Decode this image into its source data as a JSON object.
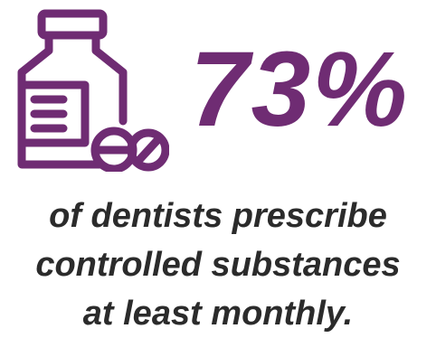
{
  "colors": {
    "accent": "#6f2c73",
    "caption_text": "#2b2b2b",
    "background": "#ffffff"
  },
  "icon": {
    "name": "pill-bottle-icon"
  },
  "stat": {
    "value": "73%"
  },
  "caption": {
    "lines": [
      "of dentists prescribe",
      "controlled substances",
      "at least monthly."
    ]
  }
}
